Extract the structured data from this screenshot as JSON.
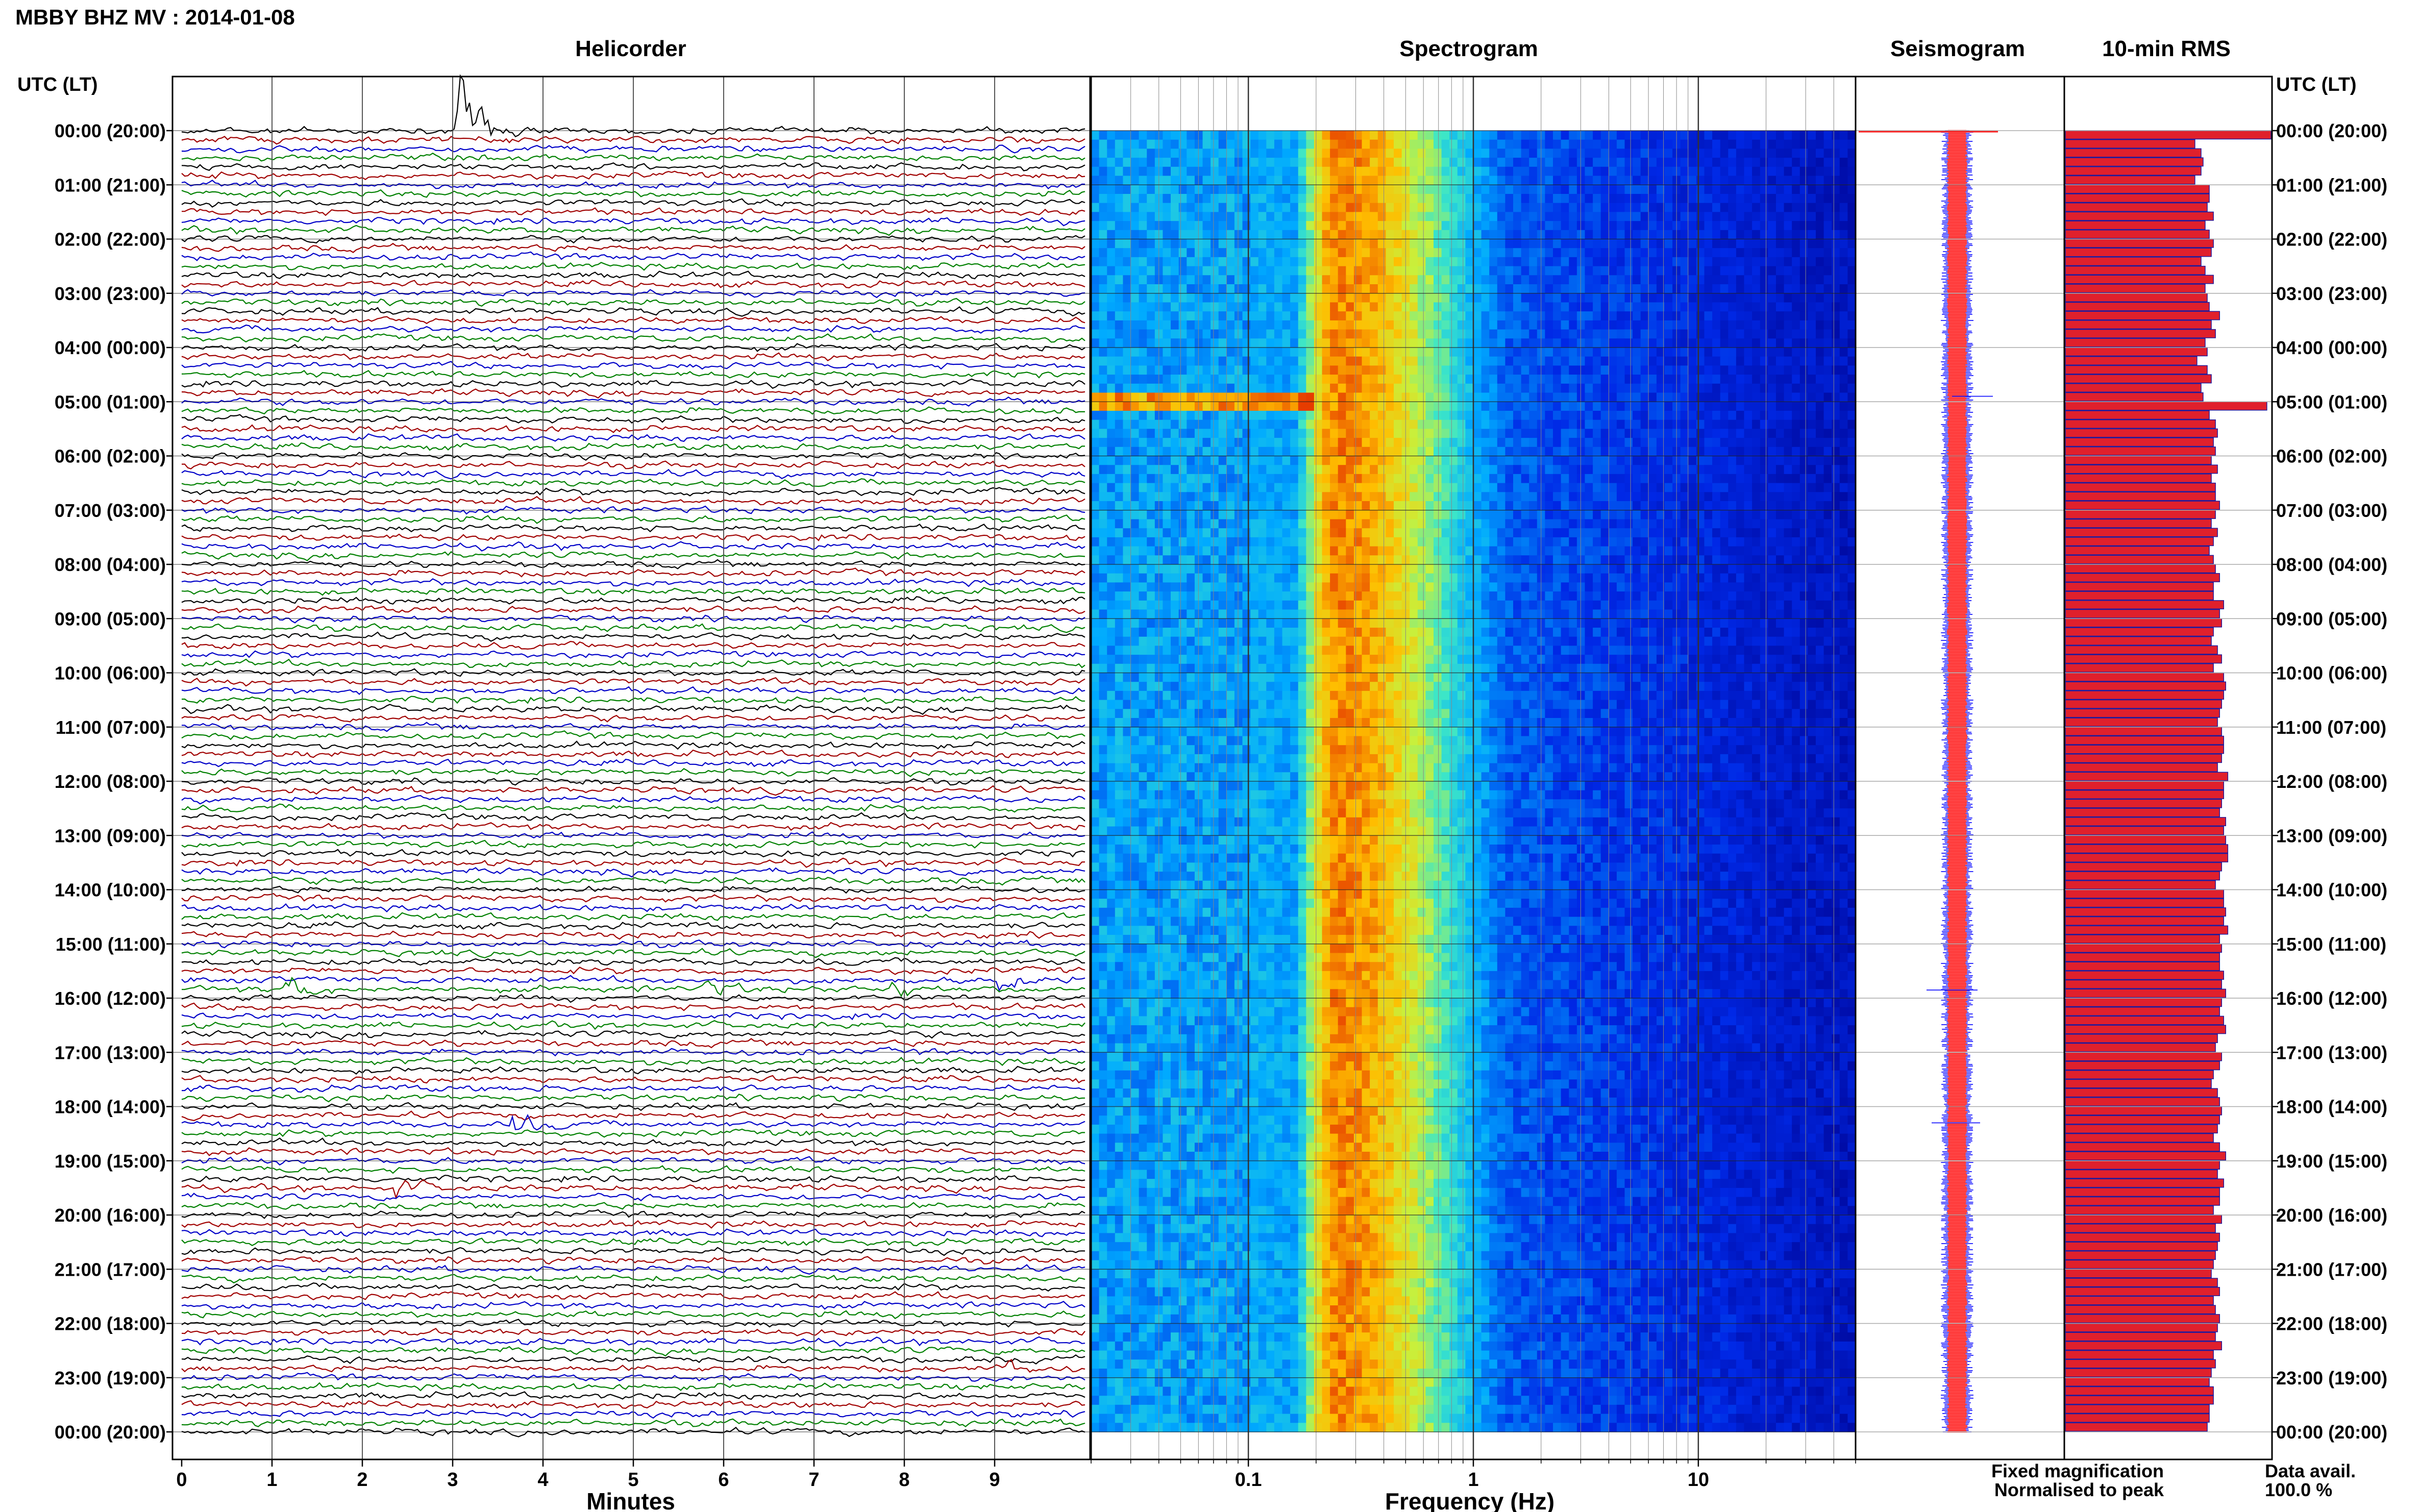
{
  "figure": {
    "title": "MBBY BHZ MV : 2014-01-08",
    "left_axis_label": "UTC (LT)",
    "right_axis_label": "UTC (LT)"
  },
  "chart_data": [
    {
      "type": "line",
      "panel": "helicorder",
      "title": "Helicorder",
      "xlabel": "Minutes",
      "xlim": [
        0,
        10
      ],
      "x_ticks": [
        0,
        1,
        2,
        3,
        4,
        5,
        6,
        7,
        8,
        9
      ],
      "trace_count": 145,
      "trace_colors": [
        "#000000",
        "#a00000",
        "#0000c8",
        "#008000"
      ],
      "y_tick_labels": [
        "00:00 (20:00)",
        "01:00 (21:00)",
        "02:00 (22:00)",
        "03:00 (23:00)",
        "04:00 (00:00)",
        "05:00 (01:00)",
        "06:00 (02:00)",
        "07:00 (03:00)",
        "08:00 (04:00)",
        "09:00 (05:00)",
        "10:00 (06:00)",
        "11:00 (07:00)",
        "12:00 (08:00)",
        "13:00 (09:00)",
        "14:00 (10:00)",
        "15:00 (11:00)",
        "16:00 (12:00)",
        "17:00 (13:00)",
        "18:00 (14:00)",
        "19:00 (15:00)",
        "20:00 (16:00)",
        "21:00 (17:00)",
        "22:00 (18:00)",
        "23:00 (19:00)",
        "00:00 (20:00)"
      ],
      "events": [
        {
          "hour": 0.0,
          "minute": 3.1,
          "size": 1.0
        },
        {
          "hour": 15.85,
          "minute": 1.2,
          "size": 0.25
        },
        {
          "hour": 15.8,
          "minute": 5.8,
          "size": 0.2
        },
        {
          "hour": 15.8,
          "minute": 7.9,
          "size": 0.2
        },
        {
          "hour": 15.7,
          "minute": 9.0,
          "size": 0.2
        },
        {
          "hour": 18.3,
          "minute": 3.7,
          "size": 0.25
        },
        {
          "hour": 19.5,
          "minute": 2.4,
          "size": 0.2
        },
        {
          "hour": 22.85,
          "minute": 9.2,
          "size": 0.15
        }
      ]
    },
    {
      "type": "heatmap",
      "panel": "spectrogram",
      "title": "Spectrogram",
      "xlabel": "Frequency (Hz)",
      "x_scale": "log",
      "xlim": [
        0.02,
        50
      ],
      "x_tick_values": [
        0.1,
        1,
        10
      ],
      "x_tick_labels": [
        "0.1",
        "1",
        "10"
      ],
      "ylim_hours": [
        0,
        24
      ],
      "peak_frequency_hz": 0.25
    },
    {
      "type": "bar",
      "panel": "seismogram",
      "title": "Seismogram",
      "orientation": "horizontal"
    },
    {
      "type": "bar",
      "panel": "rms",
      "title": "10-min RMS",
      "orientation": "horizontal",
      "bar_color": "#e0202c",
      "xlim": [
        0,
        1
      ],
      "values": [
        1.0,
        0.63,
        0.66,
        0.67,
        0.66,
        0.63,
        0.7,
        0.7,
        0.69,
        0.72,
        0.68,
        0.7,
        0.72,
        0.71,
        0.66,
        0.68,
        0.72,
        0.68,
        0.69,
        0.7,
        0.75,
        0.71,
        0.73,
        0.68,
        0.69,
        0.64,
        0.69,
        0.71,
        0.66,
        0.67,
        0.98,
        0.7,
        0.73,
        0.74,
        0.72,
        0.73,
        0.71,
        0.74,
        0.71,
        0.73,
        0.73,
        0.75,
        0.73,
        0.71,
        0.74,
        0.72,
        0.7,
        0.72,
        0.73,
        0.75,
        0.72,
        0.72,
        0.77,
        0.75,
        0.76,
        0.72,
        0.71,
        0.74,
        0.76,
        0.72,
        0.77,
        0.78,
        0.77,
        0.76,
        0.75,
        0.74,
        0.76,
        0.77,
        0.77,
        0.76,
        0.74,
        0.79,
        0.77,
        0.77,
        0.76,
        0.75,
        0.78,
        0.77,
        0.78,
        0.79,
        0.79,
        0.76,
        0.75,
        0.73,
        0.77,
        0.77,
        0.78,
        0.77,
        0.79,
        0.75,
        0.76,
        0.75,
        0.75,
        0.77,
        0.76,
        0.78,
        0.76,
        0.75,
        0.77,
        0.78,
        0.74,
        0.73,
        0.76,
        0.75,
        0.72,
        0.71,
        0.74,
        0.75,
        0.76,
        0.75,
        0.74,
        0.72,
        0.75,
        0.78,
        0.75,
        0.74,
        0.77,
        0.75,
        0.75,
        0.72,
        0.76,
        0.73,
        0.75,
        0.74,
        0.73,
        0.72,
        0.71,
        0.74,
        0.75,
        0.72,
        0.73,
        0.75,
        0.74,
        0.73,
        0.76,
        0.72,
        0.73,
        0.71,
        0.7,
        0.72,
        0.72,
        0.7,
        0.7,
        0.69
      ]
    }
  ],
  "legend": {
    "fixed_label": "Fixed magnification",
    "fixed_color": "#1a1aff",
    "normalised_label": "Normalised to peak",
    "normalised_color": "#ff1a1a"
  },
  "availability": {
    "label": "Data avail.",
    "value": "100.0 %"
  }
}
